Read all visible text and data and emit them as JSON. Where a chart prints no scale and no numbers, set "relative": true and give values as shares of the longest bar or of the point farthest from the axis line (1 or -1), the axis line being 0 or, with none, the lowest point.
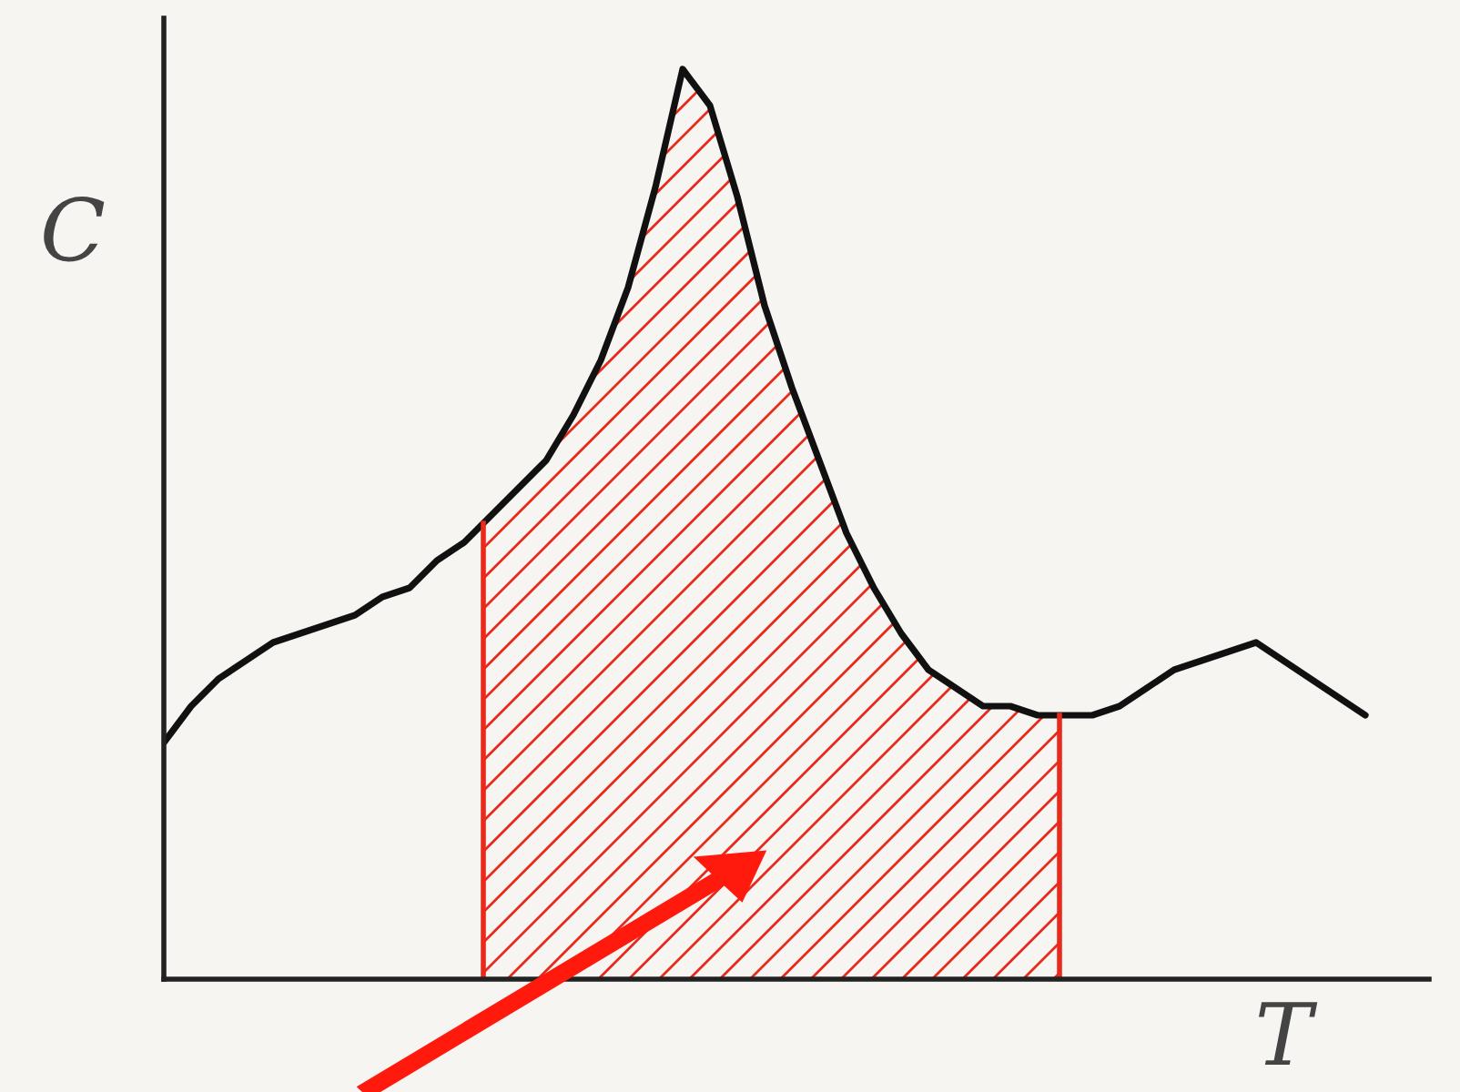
{
  "chart_data": {
    "type": "line",
    "relative": true,
    "xlabel": "T",
    "ylabel": "C",
    "color": "#111111",
    "categories": [
      null,
      null,
      null,
      null,
      null,
      null,
      null,
      null,
      null,
      null,
      null,
      null,
      null,
      null,
      null,
      null,
      null,
      null,
      null,
      null,
      null,
      null,
      null,
      null,
      null,
      null,
      null,
      null,
      null,
      null,
      null,
      null,
      null,
      null,
      null,
      null,
      null,
      null,
      null,
      null,
      null,
      null,
      null,
      null,
      null
    ],
    "values": [
      0.26,
      0.3,
      0.33,
      0.35,
      0.37,
      0.38,
      0.39,
      0.4,
      0.42,
      0.43,
      0.46,
      0.48,
      0.51,
      0.54,
      0.57,
      0.62,
      0.68,
      0.76,
      0.87,
      1.0,
      0.96,
      0.86,
      0.74,
      0.65,
      0.57,
      0.49,
      0.43,
      0.38,
      0.34,
      0.32,
      0.3,
      0.3,
      0.29,
      0.29,
      0.29,
      0.3,
      0.32,
      0.34,
      0.35,
      0.36,
      0.37,
      0.35,
      0.33,
      0.31,
      0.29
    ],
    "legend": false
  }
}
